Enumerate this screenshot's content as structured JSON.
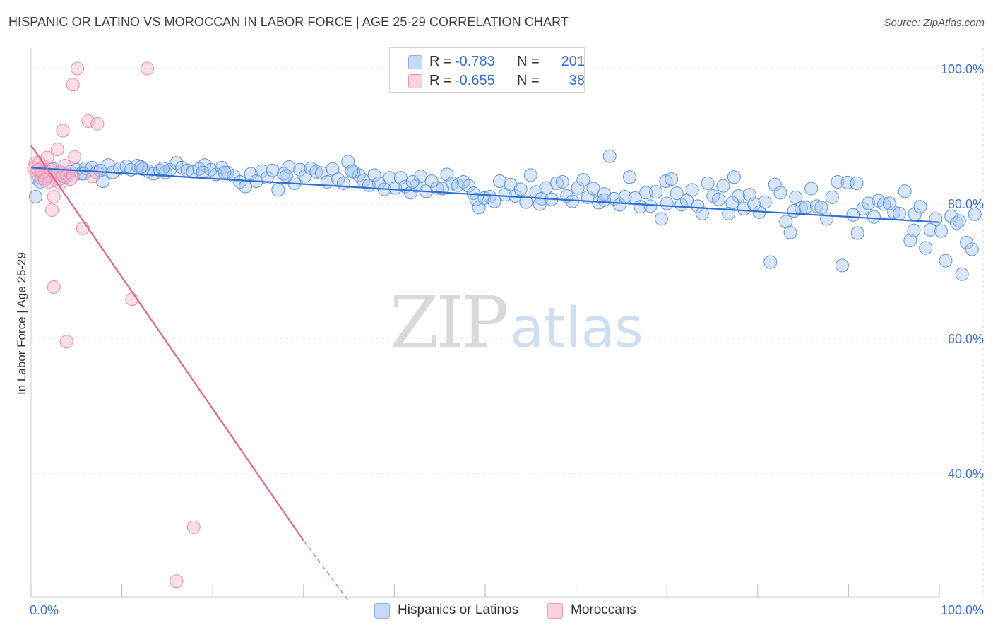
{
  "header": {
    "title": "HISPANIC OR LATINO VS MOROCCAN IN LABOR FORCE | AGE 25-29 CORRELATION CHART",
    "source": "Source: ZipAtlas.com"
  },
  "watermark": {
    "zip": "ZIP",
    "atlas": "atlas"
  },
  "legend_top": {
    "rows": [
      {
        "r_label": "R =",
        "r_value": "-0.783",
        "n_label": "N =",
        "n_value": "201",
        "color": "#a9c8f0"
      },
      {
        "r_label": "R =",
        "r_value": "-0.655",
        "n_label": "N =",
        "n_value": "38",
        "color": "#f6b8cb"
      }
    ]
  },
  "legend_bottom": {
    "items": [
      {
        "label": "Hispanics or Latinos",
        "color": "#a9c8f0"
      },
      {
        "label": "Moroccans",
        "color": "#f6b8cb"
      }
    ]
  },
  "chart_data": {
    "type": "scatter",
    "title": "HISPANIC OR LATINO VS MOROCCAN IN LABOR FORCE | AGE 25-29 CORRELATION CHART",
    "xlabel": "",
    "ylabel": "In Labor Force | Age 25-29",
    "xlim": [
      0,
      100
    ],
    "ylim": [
      20,
      102
    ],
    "x_tick_labels": [
      "0.0%",
      "100.0%"
    ],
    "y_tick_labels": [
      "100.0%",
      "80.0%",
      "60.0%",
      "40.0%"
    ],
    "y_ticks": [
      100,
      80,
      60,
      40
    ],
    "grid": true,
    "colors": {
      "blue_fill": "#a9c8f0",
      "blue_line": "#2e6fd6",
      "pink_fill": "#f6b8cb",
      "pink_line": "#e06592"
    },
    "series": [
      {
        "name": "Hispanics or Latinos",
        "trend": {
          "x0": 0,
          "y0": 85.3,
          "x1": 100,
          "y1": 77.2
        },
        "points": [
          [
            0.5,
            81.0
          ],
          [
            0.8,
            83.5
          ],
          [
            1.2,
            84.2
          ],
          [
            1.5,
            84.8
          ],
          [
            2.0,
            84.0
          ],
          [
            2.4,
            85.1
          ],
          [
            2.8,
            84.3
          ],
          [
            3.3,
            84.6
          ],
          [
            3.8,
            83.9
          ],
          [
            4.3,
            84.7
          ],
          [
            5.0,
            85.0
          ],
          [
            5.5,
            84.4
          ],
          [
            6.0,
            85.2
          ],
          [
            6.7,
            85.3
          ],
          [
            7.2,
            84.6
          ],
          [
            7.9,
            83.3
          ],
          [
            8.5,
            85.7
          ],
          [
            9.0,
            84.6
          ],
          [
            9.8,
            85.2
          ],
          [
            10.5,
            85.5
          ],
          [
            11.0,
            85.0
          ],
          [
            11.7,
            85.6
          ],
          [
            12.3,
            85.1
          ],
          [
            12.9,
            84.8
          ],
          [
            13.5,
            84.4
          ],
          [
            14.2,
            84.9
          ],
          [
            14.8,
            84.6
          ],
          [
            15.3,
            85.0
          ],
          [
            16.0,
            86.0
          ],
          [
            16.6,
            85.3
          ],
          [
            17.2,
            84.9
          ],
          [
            17.8,
            84.7
          ],
          [
            18.5,
            85.1
          ],
          [
            19.1,
            85.7
          ],
          [
            19.8,
            85.0
          ],
          [
            20.4,
            84.3
          ],
          [
            21.0,
            85.3
          ],
          [
            21.6,
            84.6
          ],
          [
            22.3,
            84.1
          ],
          [
            23.0,
            83.2
          ],
          [
            23.6,
            82.5
          ],
          [
            24.2,
            84.4
          ],
          [
            24.8,
            83.3
          ],
          [
            25.4,
            84.8
          ],
          [
            26.0,
            83.8
          ],
          [
            26.6,
            84.9
          ],
          [
            27.2,
            82.0
          ],
          [
            27.8,
            84.4
          ],
          [
            28.4,
            85.4
          ],
          [
            29.0,
            83.0
          ],
          [
            29.6,
            85.0
          ],
          [
            30.2,
            84.1
          ],
          [
            30.8,
            85.2
          ],
          [
            31.4,
            84.7
          ],
          [
            32.0,
            84.5
          ],
          [
            32.6,
            83.2
          ],
          [
            33.2,
            85.1
          ],
          [
            33.8,
            83.6
          ],
          [
            34.4,
            83.0
          ],
          [
            34.9,
            86.2
          ],
          [
            35.5,
            84.7
          ],
          [
            36.1,
            84.2
          ],
          [
            36.6,
            83.4
          ],
          [
            37.2,
            82.7
          ],
          [
            37.8,
            84.2
          ],
          [
            38.3,
            83.0
          ],
          [
            38.9,
            82.1
          ],
          [
            39.5,
            83.8
          ],
          [
            40.1,
            82.3
          ],
          [
            40.7,
            83.8
          ],
          [
            41.2,
            82.5
          ],
          [
            41.8,
            81.6
          ],
          [
            42.4,
            82.6
          ],
          [
            42.9,
            84.0
          ],
          [
            43.5,
            81.8
          ],
          [
            44.1,
            83.3
          ],
          [
            44.7,
            82.3
          ],
          [
            45.3,
            82.2
          ],
          [
            45.8,
            84.3
          ],
          [
            46.4,
            83.0
          ],
          [
            47.0,
            82.7
          ],
          [
            47.6,
            83.2
          ],
          [
            48.2,
            82.6
          ],
          [
            48.7,
            81.5
          ],
          [
            49.3,
            79.4
          ],
          [
            49.9,
            80.8
          ],
          [
            50.5,
            81.0
          ],
          [
            51.0,
            80.3
          ],
          [
            51.6,
            83.3
          ],
          [
            52.2,
            81.3
          ],
          [
            52.8,
            82.8
          ],
          [
            53.3,
            81.1
          ],
          [
            53.9,
            82.1
          ],
          [
            54.5,
            80.2
          ],
          [
            55.0,
            84.2
          ],
          [
            55.6,
            81.7
          ],
          [
            56.2,
            80.7
          ],
          [
            56.7,
            82.3
          ],
          [
            57.3,
            80.6
          ],
          [
            57.9,
            83.0
          ],
          [
            58.5,
            83.2
          ],
          [
            59.0,
            81.1
          ],
          [
            59.6,
            80.3
          ],
          [
            60.2,
            82.3
          ],
          [
            60.8,
            83.5
          ],
          [
            61.3,
            80.9
          ],
          [
            61.9,
            82.2
          ],
          [
            62.5,
            80.1
          ],
          [
            63.1,
            81.4
          ],
          [
            63.7,
            87.0
          ],
          [
            64.2,
            80.7
          ],
          [
            64.8,
            79.8
          ],
          [
            65.4,
            81.0
          ],
          [
            65.9,
            83.9
          ],
          [
            66.5,
            80.8
          ],
          [
            67.1,
            79.5
          ],
          [
            67.7,
            81.6
          ],
          [
            68.2,
            79.6
          ],
          [
            68.8,
            81.7
          ],
          [
            69.4,
            77.7
          ],
          [
            69.9,
            83.3
          ],
          [
            70.5,
            83.6
          ],
          [
            71.1,
            81.5
          ],
          [
            71.6,
            79.8
          ],
          [
            72.2,
            80.4
          ],
          [
            72.8,
            82.0
          ],
          [
            73.4,
            79.6
          ],
          [
            73.9,
            78.5
          ],
          [
            74.5,
            83.0
          ],
          [
            75.1,
            81.1
          ],
          [
            75.7,
            80.6
          ],
          [
            76.2,
            82.6
          ],
          [
            76.8,
            78.5
          ],
          [
            77.4,
            83.9
          ],
          [
            77.9,
            81.1
          ],
          [
            78.5,
            79.2
          ],
          [
            79.1,
            81.3
          ],
          [
            79.6,
            79.9
          ],
          [
            80.2,
            78.7
          ],
          [
            80.8,
            80.2
          ],
          [
            81.4,
            71.3
          ],
          [
            81.9,
            82.8
          ],
          [
            82.5,
            81.6
          ],
          [
            83.1,
            77.3
          ],
          [
            83.6,
            75.7
          ],
          [
            84.2,
            80.9
          ],
          [
            84.8,
            79.3
          ],
          [
            85.3,
            79.4
          ],
          [
            85.9,
            82.2
          ],
          [
            86.5,
            79.6
          ],
          [
            87.0,
            79.4
          ],
          [
            87.6,
            77.7
          ],
          [
            88.2,
            80.9
          ],
          [
            88.8,
            83.2
          ],
          [
            89.3,
            70.8
          ],
          [
            89.9,
            83.1
          ],
          [
            90.5,
            78.3
          ],
          [
            91.0,
            75.6
          ],
          [
            91.6,
            79.2
          ],
          [
            92.2,
            80.0
          ],
          [
            92.8,
            78.0
          ],
          [
            93.3,
            80.4
          ],
          [
            93.9,
            79.9
          ],
          [
            94.5,
            80.0
          ],
          [
            95.0,
            78.7
          ],
          [
            95.6,
            78.5
          ],
          [
            96.2,
            81.8
          ],
          [
            96.8,
            74.5
          ],
          [
            97.3,
            78.4
          ],
          [
            97.9,
            79.5
          ],
          [
            98.5,
            73.4
          ],
          [
            99.0,
            76.1
          ],
          [
            99.6,
            77.7
          ],
          [
            100.2,
            75.9
          ],
          [
            100.7,
            71.5
          ],
          [
            101.3,
            78.1
          ],
          [
            101.9,
            77.1
          ],
          [
            102.5,
            69.5
          ],
          [
            103.0,
            74.2
          ],
          [
            103.6,
            73.2
          ],
          [
            103.9,
            78.4
          ],
          [
            97.2,
            76.0
          ],
          [
            90.9,
            83.0
          ],
          [
            84.0,
            78.9
          ],
          [
            77.2,
            80.1
          ],
          [
            70.0,
            80.0
          ],
          [
            63.1,
            80.5
          ],
          [
            56.0,
            79.9
          ],
          [
            49.0,
            80.6
          ],
          [
            42.0,
            83.2
          ],
          [
            35.3,
            84.8
          ],
          [
            28.1,
            84.1
          ],
          [
            21.3,
            84.6
          ],
          [
            14.5,
            85.2
          ],
          [
            7.6,
            84.9
          ],
          [
            3.1,
            83.6
          ],
          [
            1.0,
            83.2
          ],
          [
            5.8,
            84.4
          ],
          [
            12.1,
            85.4
          ],
          [
            18.9,
            84.6
          ],
          [
            102.2,
            77.4
          ]
        ]
      },
      {
        "name": "Moroccans",
        "trend": {
          "x0": 0,
          "y0": 88.6,
          "x1": 30.0,
          "y1": 30.0,
          "dash_x1": 35.0,
          "dash_y1": 21.0
        },
        "points": [
          [
            0.3,
            85.3
          ],
          [
            0.6,
            84.4
          ],
          [
            0.9,
            86.0
          ],
          [
            1.1,
            83.8
          ],
          [
            1.4,
            85.5
          ],
          [
            1.7,
            84.1
          ],
          [
            2.0,
            83.2
          ],
          [
            2.2,
            85.0
          ],
          [
            2.5,
            81.0
          ],
          [
            2.7,
            83.5
          ],
          [
            3.0,
            84.6
          ],
          [
            3.2,
            83.0
          ],
          [
            3.5,
            84.1
          ],
          [
            3.7,
            85.6
          ],
          [
            4.0,
            84.2
          ],
          [
            4.3,
            83.6
          ],
          [
            4.6,
            84.1
          ],
          [
            4.8,
            86.9
          ],
          [
            3.5,
            90.8
          ],
          [
            2.3,
            79.0
          ],
          [
            1.8,
            86.8
          ],
          [
            1.2,
            84.6
          ],
          [
            0.5,
            86.0
          ],
          [
            4.6,
            97.6
          ],
          [
            5.1,
            100.0
          ],
          [
            5.7,
            76.3
          ],
          [
            3.9,
            59.5
          ],
          [
            6.3,
            92.2
          ],
          [
            6.8,
            84.0
          ],
          [
            7.3,
            91.8
          ],
          [
            12.8,
            100.0
          ],
          [
            11.1,
            65.8
          ],
          [
            17.9,
            32.0
          ],
          [
            2.5,
            67.6
          ],
          [
            16.0,
            24.0
          ],
          [
            2.9,
            88.0
          ],
          [
            0.8,
            85.0
          ],
          [
            1.5,
            83.5
          ]
        ]
      }
    ]
  }
}
